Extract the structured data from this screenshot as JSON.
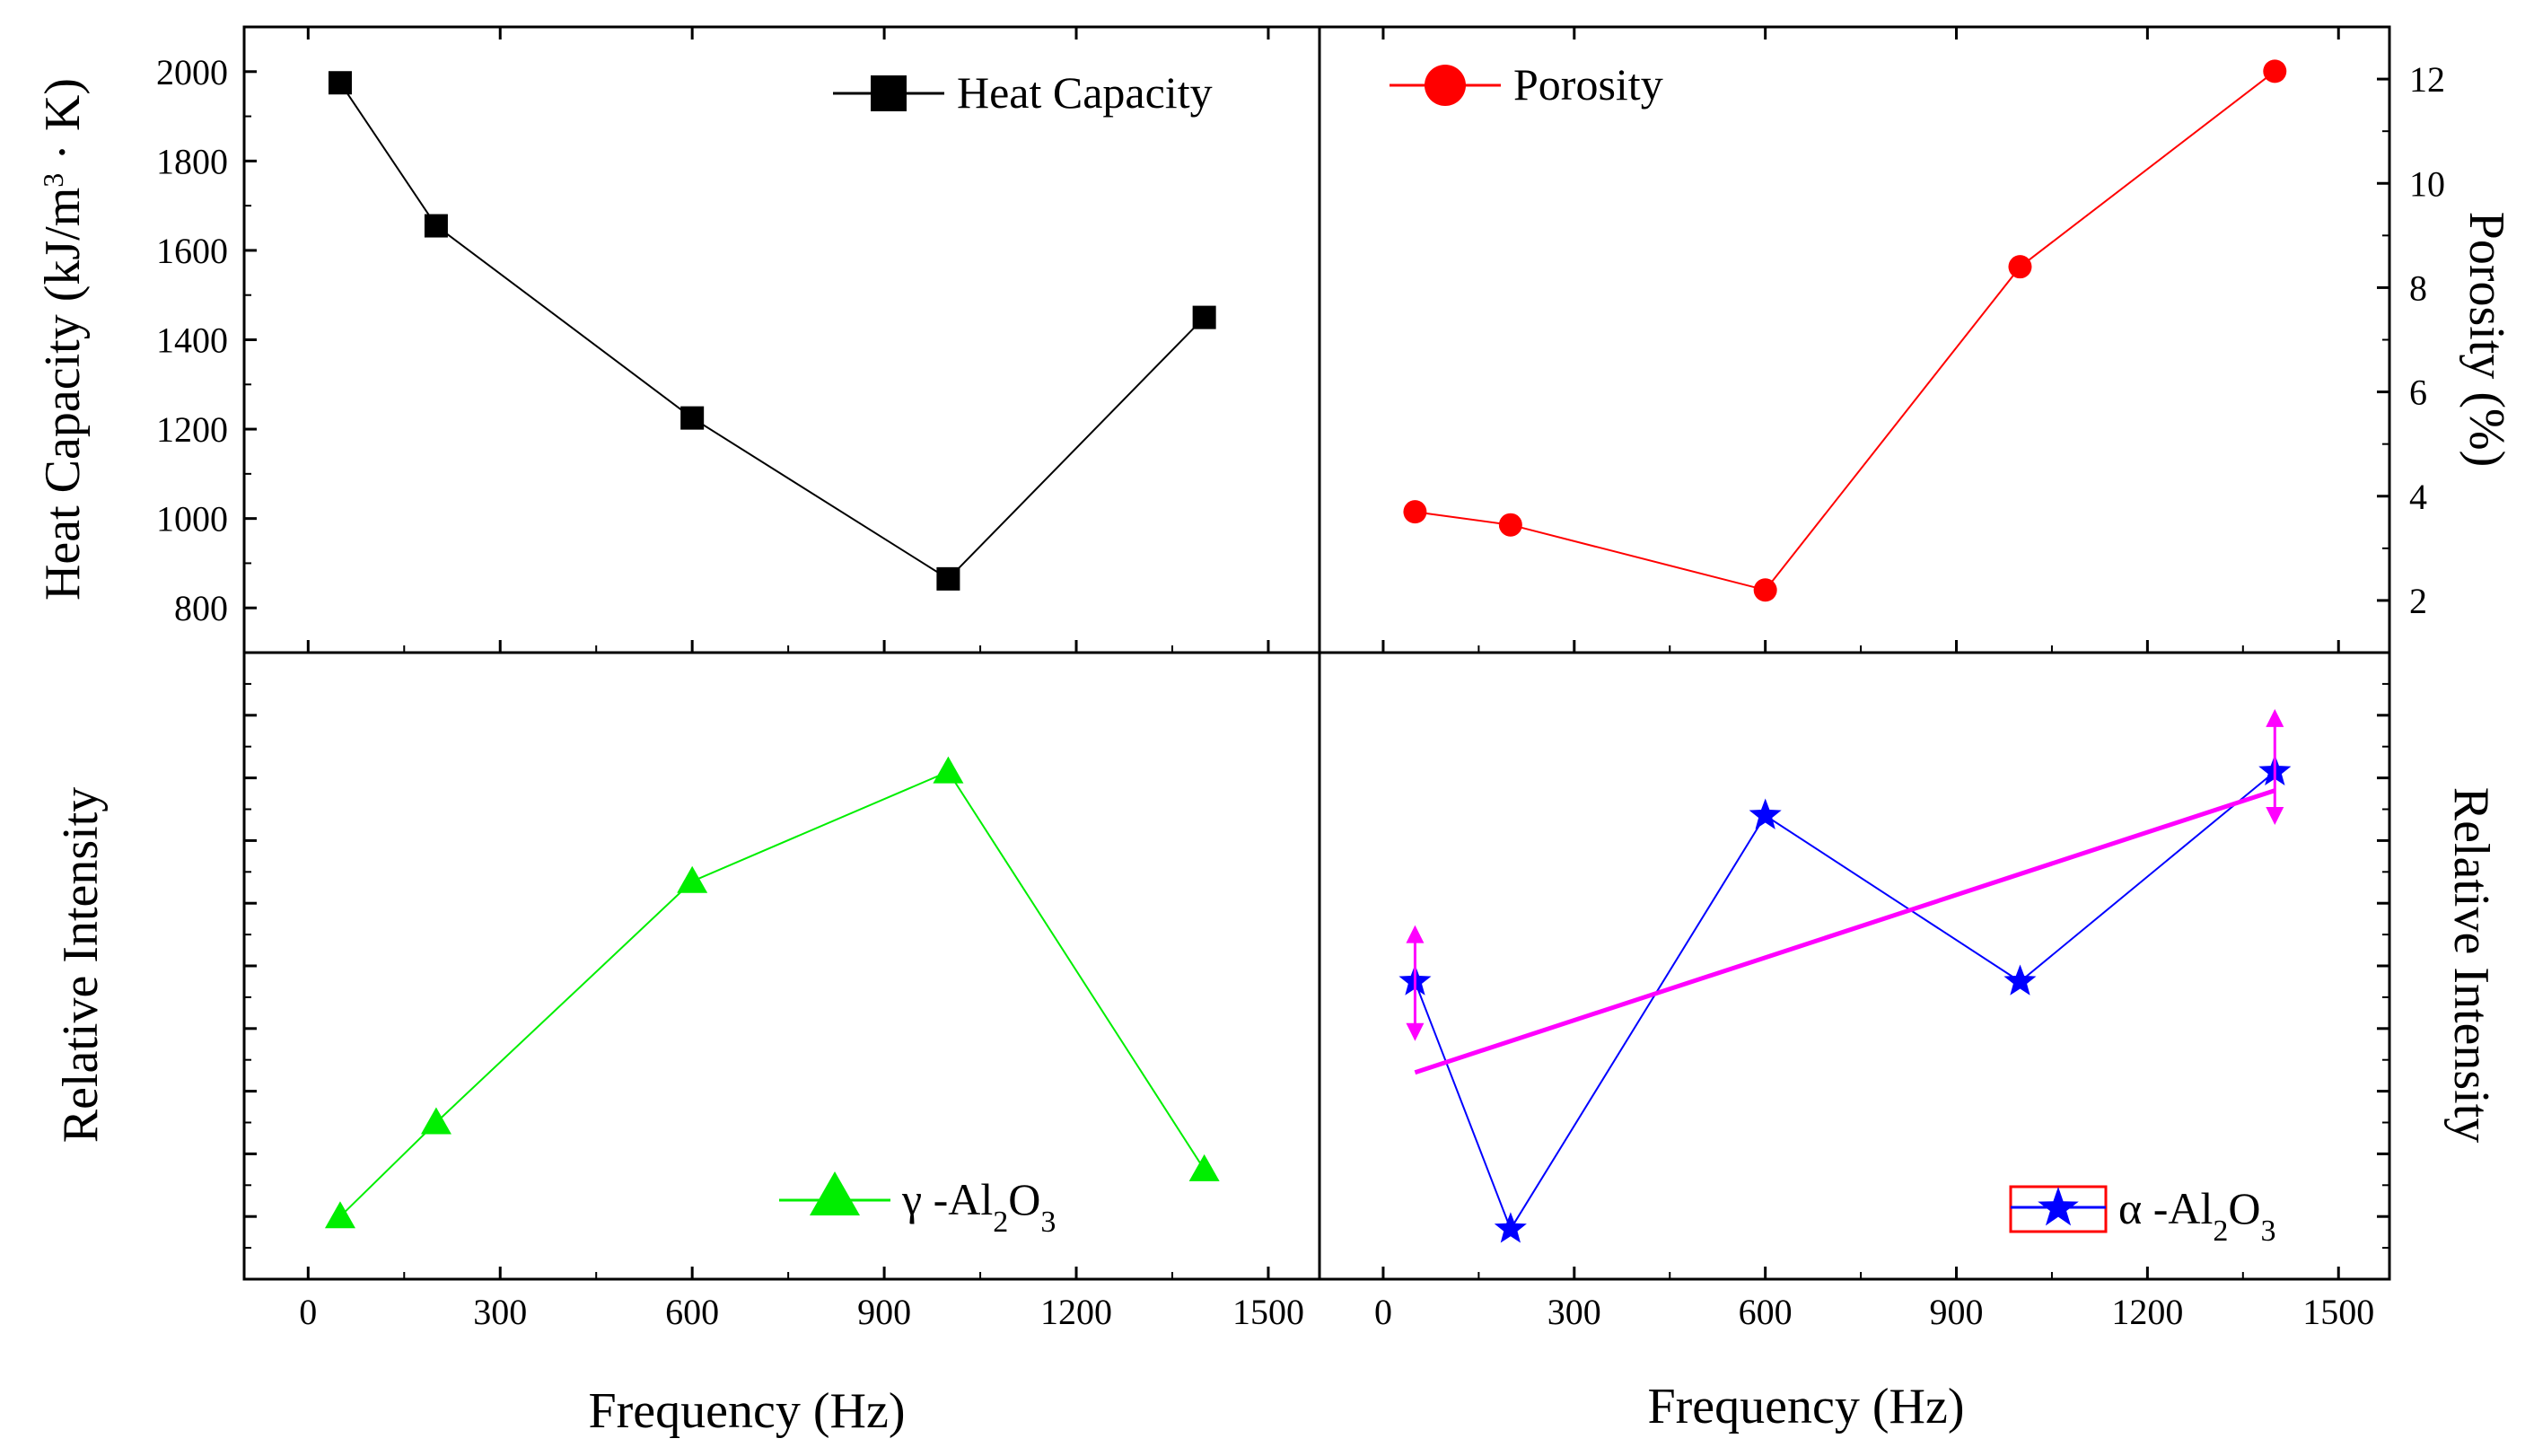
{
  "chart_data": [
    {
      "type": "line",
      "panel": "top-left",
      "title": "",
      "xlabel": "",
      "ylabel": "Heat Capacity (kJ/m³ · K)",
      "ylabel_parts": {
        "main": "Heat Capacity (kJ/m",
        "sup": "3",
        "tail": " · K)"
      },
      "xlim": [
        -100,
        1580
      ],
      "ylim": [
        700,
        2100
      ],
      "yticks": [
        800,
        1000,
        1200,
        1400,
        1600,
        1800,
        2000
      ],
      "x": [
        50,
        200,
        600,
        1000,
        1400
      ],
      "series": [
        {
          "name": "Heat Capacity",
          "values": [
            1975,
            1655,
            1225,
            865,
            1450
          ],
          "color": "#000000",
          "marker": "square"
        }
      ],
      "legend_position": "top-right"
    },
    {
      "type": "line",
      "panel": "top-right",
      "xlabel": "",
      "ylabel": "Porosity (%)",
      "xlim": [
        -100,
        1580
      ],
      "ylim": [
        1,
        13
      ],
      "yticks": [
        2,
        4,
        6,
        8,
        10,
        12
      ],
      "x": [
        50,
        200,
        600,
        1000,
        1400
      ],
      "series": [
        {
          "name": "Porosity",
          "values": [
            3.7,
            3.45,
            2.2,
            8.4,
            12.15
          ],
          "color": "#ff0000",
          "marker": "circle"
        }
      ],
      "legend_position": "top-left"
    },
    {
      "type": "line",
      "panel": "bottom-left",
      "xlabel": "Frequency (Hz)",
      "ylabel": "Relative Intensity",
      "xlim": [
        -100,
        1580
      ],
      "ylim": [
        0,
        10
      ],
      "xticks": [
        0,
        300,
        600,
        900,
        1200,
        1500
      ],
      "x": [
        50,
        200,
        600,
        1000,
        1400
      ],
      "series": [
        {
          "name": "γ -Al2O3",
          "values": [
            1.0,
            2.5,
            6.35,
            8.1,
            1.75
          ],
          "color": "#00ee00",
          "marker": "triangle"
        }
      ],
      "legend_label": {
        "prefix": "γ  -Al",
        "sub1": "2",
        "mid": "O",
        "sub2": "3"
      },
      "legend_position": "bottom-right"
    },
    {
      "type": "line",
      "panel": "bottom-right",
      "xlabel": "Frequency (Hz)",
      "ylabel": "Relative Intensity",
      "xlim": [
        -100,
        1580
      ],
      "ylim": [
        0,
        10
      ],
      "xticks": [
        0,
        300,
        600,
        900,
        1200,
        1500
      ],
      "x": [
        50,
        200,
        600,
        1000,
        1400
      ],
      "series": [
        {
          "name": "α -Al2O3",
          "values": [
            4.75,
            0.8,
            7.4,
            4.75,
            8.1
          ],
          "color": "#0000ff",
          "marker": "star"
        },
        {
          "name": "trend",
          "x": [
            50,
            1400
          ],
          "values": [
            3.3,
            7.8
          ],
          "color": "#ff00ff",
          "marker": "none"
        }
      ],
      "error_arrows": [
        {
          "x": 50,
          "y": 4.75,
          "low": 3.8,
          "high": 5.65
        },
        {
          "x": 1400,
          "y": 8.1,
          "low": 7.25,
          "high": 9.1
        }
      ],
      "legend_label": {
        "prefix": "α  -Al",
        "sub1": "2",
        "mid": "O",
        "sub2": "3"
      },
      "legend_position": "bottom-right"
    }
  ]
}
